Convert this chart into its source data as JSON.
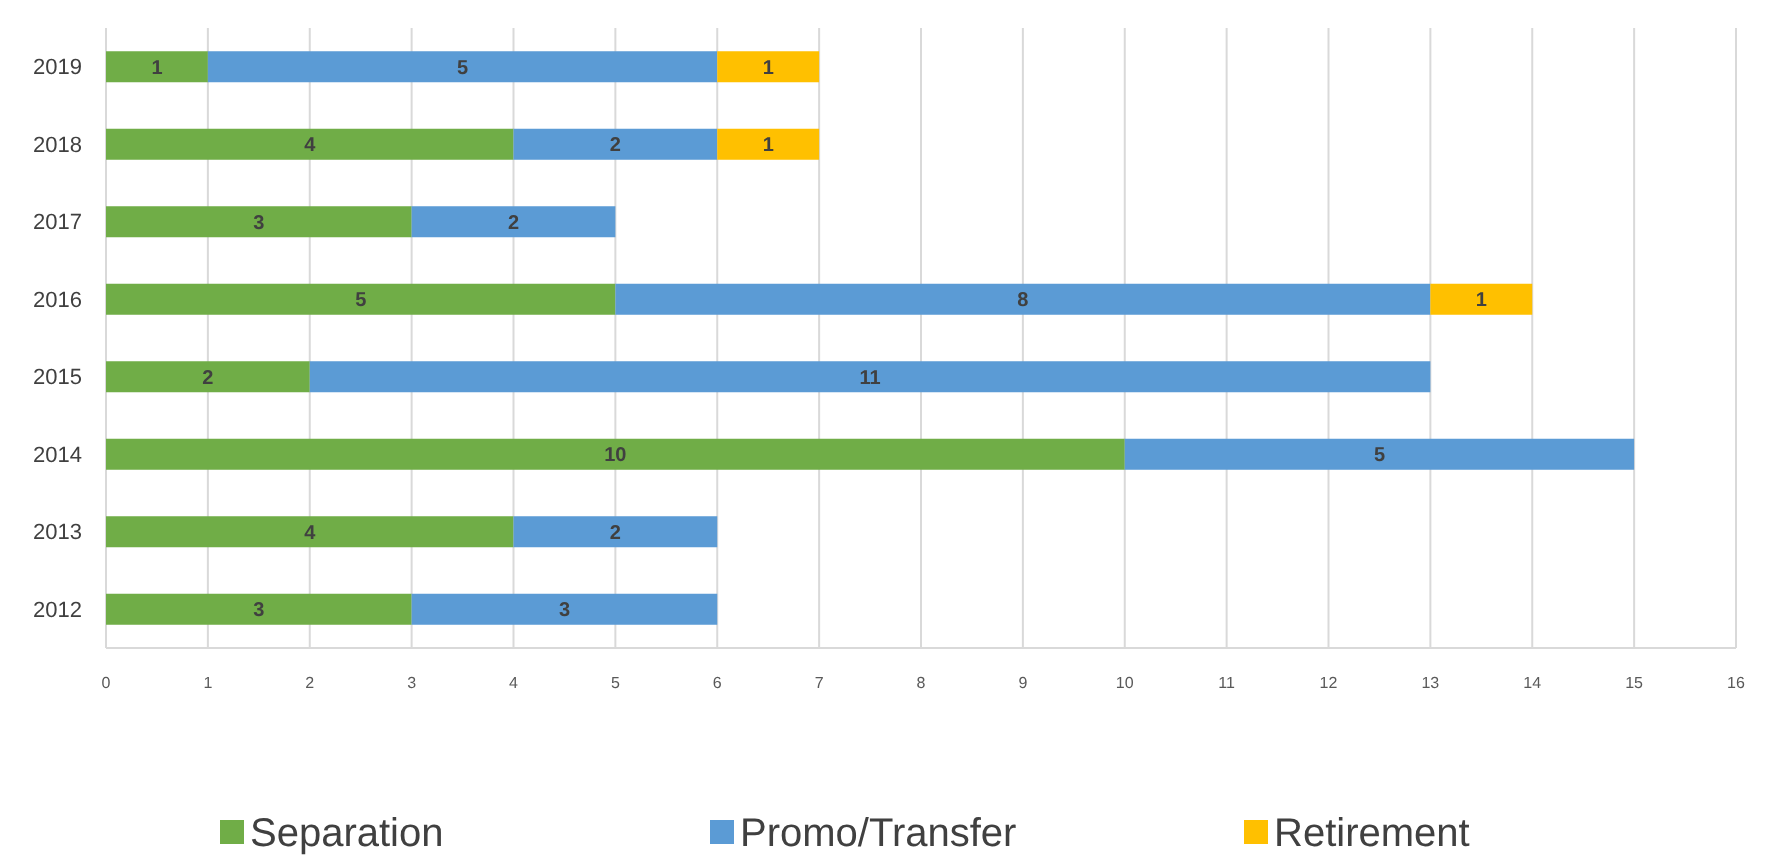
{
  "chart_data": {
    "type": "bar",
    "orientation": "horizontal",
    "stacked": true,
    "categories": [
      "2019",
      "2018",
      "2017",
      "2016",
      "2015",
      "2014",
      "2013",
      "2012"
    ],
    "series": [
      {
        "name": "Separation",
        "color": "#70ad47",
        "values": [
          1,
          4,
          3,
          5,
          2,
          10,
          4,
          3
        ]
      },
      {
        "name": "Promo/Transfer",
        "color": "#5b9bd5",
        "values": [
          5,
          2,
          2,
          8,
          11,
          5,
          2,
          3
        ]
      },
      {
        "name": "Retirement",
        "color": "#ffc000",
        "values": [
          1,
          1,
          null,
          1,
          null,
          null,
          null,
          null
        ]
      }
    ],
    "xlim": [
      0,
      16
    ],
    "xticks": [
      0,
      1,
      2,
      3,
      4,
      5,
      6,
      7,
      8,
      9,
      10,
      11,
      12,
      13,
      14,
      15,
      16
    ],
    "grid": "x",
    "legend": "bottom",
    "data_labels": true
  }
}
